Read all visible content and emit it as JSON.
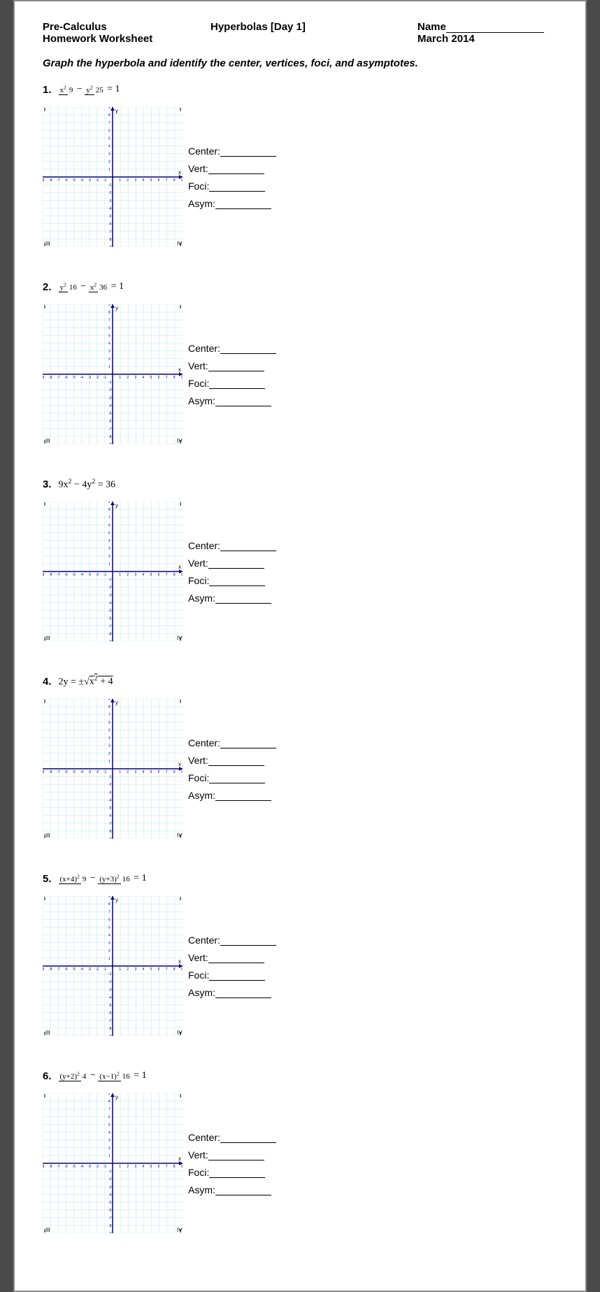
{
  "header": {
    "course": "Pre-Calculus",
    "subtitle": "Homework Worksheet",
    "lesson": "Hyperbolas [Day 1]",
    "name_label": "Name",
    "date": "March 2014"
  },
  "instruction": "Graph the hyperbola and identify the center, vertices, foci, and asymptotes.",
  "answer_labels": {
    "center": "Center:",
    "vert": "Vert:",
    "foci": "Foci:",
    "asym": "Asym:"
  },
  "grid": {
    "size": 200,
    "cells": 18,
    "range": 9,
    "bg": "#ffffff",
    "line_light": "#bfe3ef",
    "line_dark": "#000080",
    "axis": "#000080",
    "tick_font": 5,
    "axis_label_font": 8
  },
  "problems": [
    {
      "n": "1.",
      "eq_html": "<span class='frac'><span class='n'>x<sup>2</sup></span><span class='d'>9</span></span> − <span class='frac'><span class='n'>y<sup>2</sup></span><span class='d'>25</span></span> = 1"
    },
    {
      "n": "2.",
      "eq_html": "<span class='frac'><span class='n'>y<sup>2</sup></span><span class='d'>16</span></span> − <span class='frac'><span class='n'>x<sup>2</sup></span><span class='d'>36</span></span> = 1"
    },
    {
      "n": "3.",
      "eq_html": "9x<sup>2</sup> − 4y<sup>2</sup> = 36"
    },
    {
      "n": "4.",
      "eq_html": "2y = ±&radic;<span style='text-decoration:overline'>x<sup>2</sup> + 4</span>"
    },
    {
      "n": "5.",
      "eq_html": "<span class='frac'><span class='n'>(x+4)<sup>2</sup></span><span class='d'>9</span></span> − <span class='frac'><span class='n'>(y+3)<sup>2</sup></span><span class='d'>16</span></span> = 1"
    },
    {
      "n": "6.",
      "eq_html": "<span class='frac'><span class='n'>(y+2)<sup>2</sup></span><span class='d'>4</span></span> − <span class='frac'><span class='n'>(x−1)<sup>2</sup></span><span class='d'>16</span></span> = 1"
    }
  ]
}
